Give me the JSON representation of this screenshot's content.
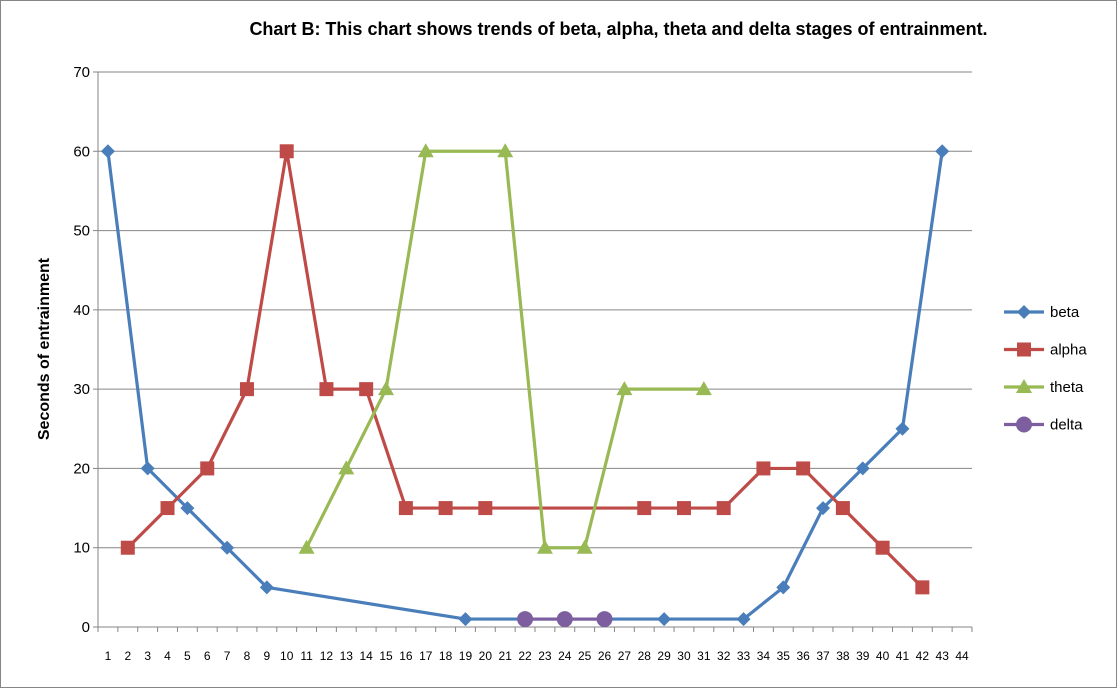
{
  "chart_data": {
    "type": "line",
    "title": "Chart B: This chart shows trends of beta, alpha, theta and delta stages of entrainment.",
    "xlabel": "",
    "ylabel": "Seconds of entrainment",
    "ylim": [
      0,
      70
    ],
    "yticks": [
      "0",
      "10",
      "20",
      "30",
      "40",
      "50",
      "60",
      "70"
    ],
    "categories": [
      "1",
      "2",
      "3",
      "4",
      "5",
      "6",
      "7",
      "8",
      "9",
      "10",
      "11",
      "12",
      "13",
      "14",
      "15",
      "16",
      "17",
      "18",
      "19",
      "20",
      "21",
      "22",
      "23",
      "24",
      "25",
      "26",
      "27",
      "28",
      "29",
      "30",
      "31",
      "32",
      "33",
      "34",
      "35",
      "36",
      "37",
      "38",
      "39",
      "40",
      "41",
      "42",
      "43",
      "44"
    ],
    "grid": true,
    "legend_position": "right",
    "series": [
      {
        "name": "beta",
        "color": "#4a7ebb",
        "marker": "diamond",
        "points": [
          [
            1,
            60
          ],
          [
            3,
            20
          ],
          [
            5,
            15
          ],
          [
            7,
            10
          ],
          [
            9,
            5
          ],
          [
            19,
            1
          ],
          [
            29,
            1
          ],
          [
            33,
            1
          ],
          [
            35,
            5
          ],
          [
            37,
            15
          ],
          [
            39,
            20
          ],
          [
            41,
            25
          ],
          [
            43,
            60
          ]
        ]
      },
      {
        "name": "alpha",
        "color": "#be4b48",
        "marker": "square",
        "points": [
          [
            2,
            10
          ],
          [
            4,
            15
          ],
          [
            6,
            20
          ],
          [
            8,
            30
          ],
          [
            10,
            60
          ],
          [
            12,
            30
          ],
          [
            14,
            30
          ],
          [
            16,
            15
          ],
          [
            18,
            15
          ],
          [
            20,
            15
          ],
          [
            28,
            15
          ],
          [
            30,
            15
          ],
          [
            32,
            15
          ],
          [
            34,
            20
          ],
          [
            36,
            20
          ],
          [
            38,
            15
          ],
          [
            40,
            10
          ],
          [
            42,
            5
          ]
        ]
      },
      {
        "name": "theta",
        "color": "#98b954",
        "marker": "triangle",
        "points": [
          [
            11,
            10
          ],
          [
            13,
            20
          ],
          [
            15,
            30
          ],
          [
            17,
            60
          ],
          [
            21,
            60
          ],
          [
            23,
            10
          ],
          [
            25,
            10
          ],
          [
            27,
            30
          ],
          [
            31,
            30
          ]
        ]
      },
      {
        "name": "delta",
        "color": "#7d5fa0",
        "marker": "circle",
        "points": [
          [
            22,
            1
          ],
          [
            24,
            1
          ],
          [
            26,
            1
          ]
        ]
      }
    ]
  }
}
